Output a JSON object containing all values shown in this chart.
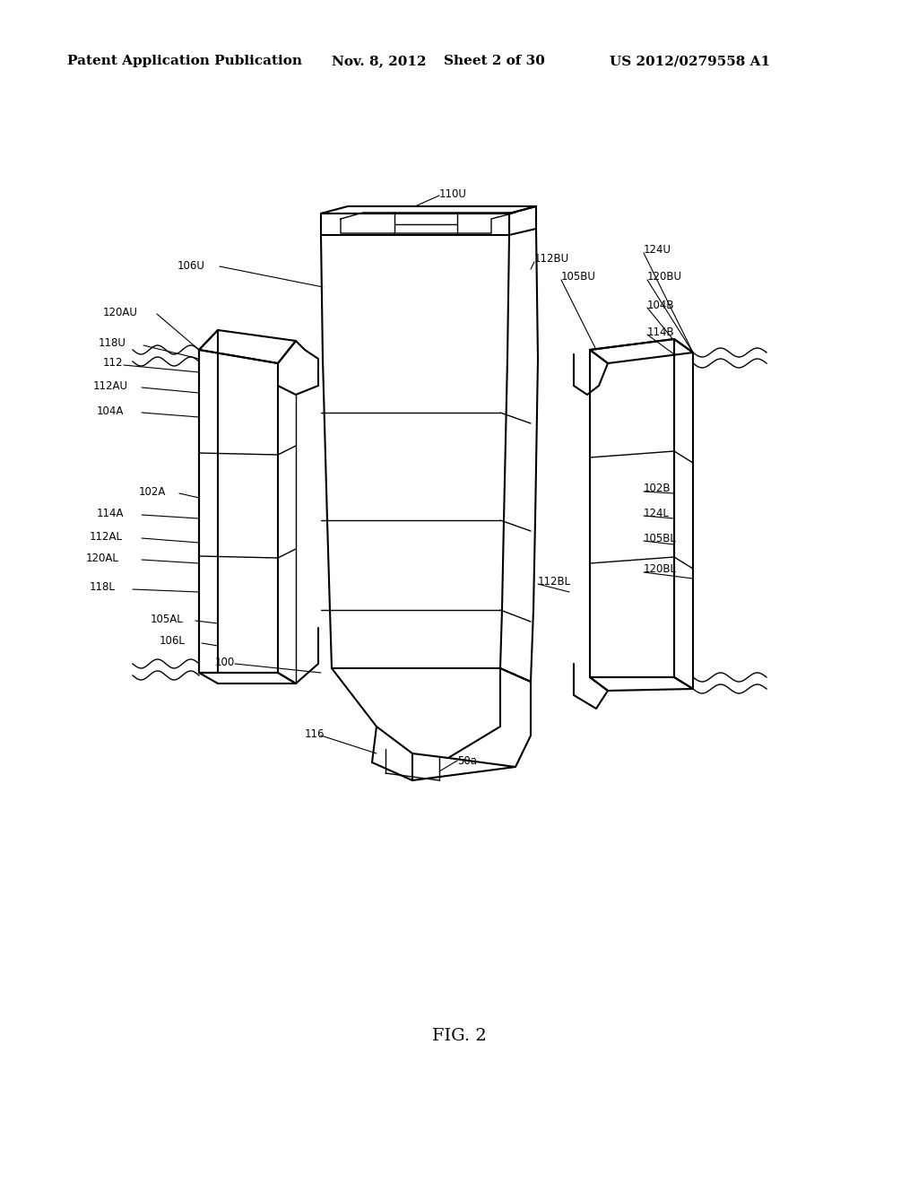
{
  "bg_color": "#ffffff",
  "header_text": "Patent Application Publication",
  "header_date": "Nov. 8, 2012",
  "header_sheet": "Sheet 2 of 30",
  "header_patent": "US 2012/0279558 A1",
  "fig_label": "FIG. 2",
  "label_fs": 8.5,
  "header_fs": 11
}
